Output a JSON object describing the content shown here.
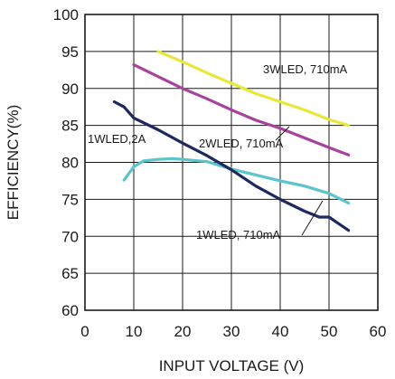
{
  "chart_data": {
    "type": "line",
    "title": "",
    "xlabel": "INPUT VOLTAGE (V)",
    "ylabel": "EFFICIENCY(%)",
    "xlim": [
      0,
      60
    ],
    "ylim": [
      60,
      100
    ],
    "xticks": [
      0,
      10,
      20,
      30,
      40,
      50,
      60
    ],
    "yticks": [
      60,
      65,
      70,
      75,
      80,
      85,
      90,
      95,
      100
    ],
    "grid": true,
    "legend": "none",
    "series": [
      {
        "name": "3WLED, 710mA",
        "color": "#e8e83a",
        "x": [
          15,
          20,
          25,
          30,
          35,
          40,
          45,
          50,
          54
        ],
        "y": [
          95,
          93.6,
          92.1,
          90.7,
          89.3,
          88.2,
          87.1,
          85.8,
          85
        ]
      },
      {
        "name": "2WLED, 710mA",
        "color": "#a8439c",
        "x": [
          10,
          15,
          20,
          25,
          30,
          35,
          40,
          45,
          50,
          54
        ],
        "y": [
          93.2,
          91.6,
          90,
          88.6,
          87.1,
          85.7,
          84.6,
          83.3,
          82,
          81
        ]
      },
      {
        "name": "1WLED, 2A",
        "color": "#5bc4cc",
        "x": [
          8,
          10,
          12,
          15,
          18,
          20,
          25,
          30,
          35,
          40,
          45,
          50,
          54
        ],
        "y": [
          77.6,
          79.4,
          80.2,
          80.4,
          80.5,
          80.4,
          80.1,
          79.1,
          78.3,
          77.5,
          76.8,
          75.8,
          74.5
        ]
      },
      {
        "name": "1WLED, 710mA",
        "color": "#1e2a5e",
        "x": [
          6,
          8,
          10,
          15,
          20,
          25,
          30,
          35,
          40,
          45,
          48,
          50,
          54
        ],
        "y": [
          88.2,
          87.5,
          86,
          84.4,
          82.6,
          80.9,
          79,
          76.8,
          75,
          73.4,
          72.6,
          72.6,
          70.8
        ]
      }
    ],
    "annotations": [
      {
        "text": "3WLED, 710mA",
        "series": 0
      },
      {
        "text": "2WLED, 710mA",
        "series": 1
      },
      {
        "text": "1WLED,2A",
        "series": 2
      },
      {
        "text": "1WLED, 710mA",
        "series": 3
      }
    ]
  }
}
